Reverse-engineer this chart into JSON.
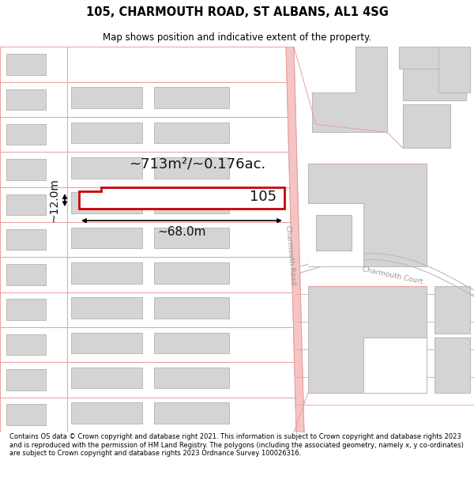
{
  "title_line1": "105, CHARMOUTH ROAD, ST ALBANS, AL1 4SG",
  "title_line2": "Map shows position and indicative extent of the property.",
  "footer_text": "Contains OS data © Crown copyright and database right 2021. This information is subject to Crown copyright and database rights 2023 and is reproduced with the permission of HM Land Registry. The polygons (including the associated geometry, namely x, y co-ordinates) are subject to Crown copyright and database rights 2023 Ordnance Survey 100026316.",
  "map_bg": "#ffffff",
  "road_color": "#f5c5c5",
  "road_line_color": "#e8a0a0",
  "building_color": "#d4d4d4",
  "building_edge": "#bbbbbb",
  "highlight_color": "#cc0000",
  "highlight_fill": "#ffffff",
  "road_label_color": "#999999",
  "annotation_color": "#111111",
  "area_text": "~713m²/~0.176ac.",
  "width_text": "~68.0m",
  "height_text": "~12.0m",
  "property_label": "105",
  "road_name_1": "Charmouth Road",
  "road_name_2": "Charmouth Court"
}
